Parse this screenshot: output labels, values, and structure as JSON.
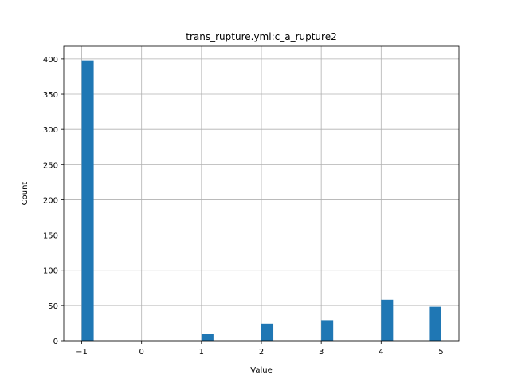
{
  "chart_data": {
    "type": "bar",
    "title": "trans_rupture.yml:c_a_rupture2",
    "xlabel": "Value",
    "ylabel": "Count",
    "xlim": [
      -1.3,
      5.3
    ],
    "ylim": [
      0,
      418
    ],
    "grid": true,
    "legend": "none",
    "bar_color": "#1f77b4",
    "grid_color": "#b0b0b0",
    "bins": [
      {
        "x_start": -1.0,
        "x_end": -0.8,
        "count": 398
      },
      {
        "x_start": 1.0,
        "x_end": 1.2,
        "count": 10
      },
      {
        "x_start": 2.0,
        "x_end": 2.2,
        "count": 24
      },
      {
        "x_start": 3.0,
        "x_end": 3.2,
        "count": 29
      },
      {
        "x_start": 4.0,
        "x_end": 4.2,
        "count": 58
      },
      {
        "x_start": 4.8,
        "x_end": 5.0,
        "count": 48
      }
    ],
    "x_ticks": [
      {
        "value": -1,
        "label": "−1"
      },
      {
        "value": 0,
        "label": "0"
      },
      {
        "value": 1,
        "label": "1"
      },
      {
        "value": 2,
        "label": "2"
      },
      {
        "value": 3,
        "label": "3"
      },
      {
        "value": 4,
        "label": "4"
      },
      {
        "value": 5,
        "label": "5"
      }
    ],
    "y_ticks": [
      {
        "value": 0,
        "label": "0"
      },
      {
        "value": 50,
        "label": "50"
      },
      {
        "value": 100,
        "label": "100"
      },
      {
        "value": 150,
        "label": "150"
      },
      {
        "value": 200,
        "label": "200"
      },
      {
        "value": 250,
        "label": "250"
      },
      {
        "value": 300,
        "label": "300"
      },
      {
        "value": 350,
        "label": "350"
      },
      {
        "value": 400,
        "label": "400"
      }
    ]
  }
}
